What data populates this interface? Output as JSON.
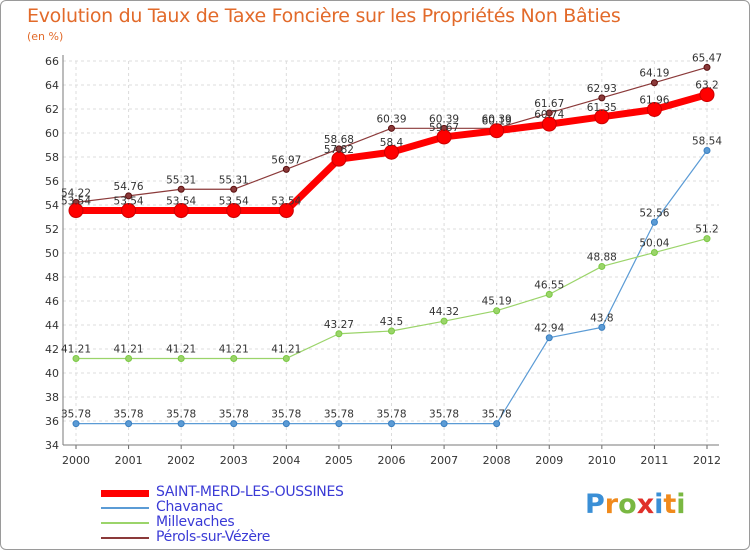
{
  "title": "Evolution du Taux de Taxe Foncière sur les Propriétés Non Bâties",
  "unit": "(en %)",
  "logo": {
    "letters": [
      "P",
      "r",
      "o",
      "x",
      "i",
      "t",
      "i"
    ],
    "colors": [
      "#3a8fd6",
      "#f08a1c",
      "#7ab842",
      "#e0302a",
      "#3a8fd6",
      "#f08a1c",
      "#7ab842"
    ]
  },
  "chart_data": {
    "type": "line",
    "title": "Evolution du Taux de Taxe Foncière sur les Propriétés Non Bâties",
    "ylabel": "(en %)",
    "xlabel": "",
    "ylim": [
      34,
      66
    ],
    "yticks": [
      34,
      36,
      38,
      40,
      42,
      44,
      46,
      48,
      50,
      52,
      54,
      56,
      58,
      60,
      62,
      64,
      66
    ],
    "categories": [
      "2000",
      "2001",
      "2002",
      "2003",
      "2004",
      "2005",
      "2006",
      "2007",
      "2008",
      "2009",
      "2010",
      "2011",
      "2012"
    ],
    "series": [
      {
        "name": "SAINT-MERD-LES-OUSSINES",
        "color": "#ff0000",
        "marker": "#cc0000",
        "width": 7,
        "radius": 7,
        "values": [
          53.54,
          53.54,
          53.54,
          53.54,
          53.54,
          57.82,
          58.4,
          59.67,
          60.19,
          60.74,
          61.35,
          61.96,
          63.2
        ],
        "labels": [
          "53.54",
          "53.54",
          "53.54",
          "53.54",
          "53.54",
          "57.82",
          "58.4",
          "59.67",
          "60.19",
          "60.74",
          "61.35",
          "61.96",
          "63.2"
        ]
      },
      {
        "name": "Chavanac",
        "color": "#5b9bd5",
        "marker": "#3a7fc0",
        "width": 1.2,
        "radius": 3,
        "values": [
          35.78,
          35.78,
          35.78,
          35.78,
          35.78,
          35.78,
          35.78,
          35.78,
          35.78,
          42.94,
          43.8,
          52.56,
          58.54
        ],
        "labels": [
          "35.78",
          "35.78",
          "35.78",
          "35.78",
          "35.78",
          "35.78",
          "35.78",
          "35.78",
          "35.78",
          "42.94",
          "43.8",
          "52.56",
          "58.54"
        ]
      },
      {
        "name": "Millevaches",
        "color": "#9bd46a",
        "marker": "#7ac943",
        "width": 1.2,
        "radius": 3,
        "values": [
          41.21,
          41.21,
          41.21,
          41.21,
          41.21,
          43.27,
          43.5,
          44.32,
          45.19,
          46.55,
          48.88,
          50.04,
          51.2
        ],
        "labels": [
          "41.21",
          "41.21",
          "41.21",
          "41.21",
          "41.21",
          "43.27",
          "43.5",
          "44.32",
          "45.19",
          "46.55",
          "48.88",
          "50.04",
          "51.2"
        ]
      },
      {
        "name": "Pérols-sur-Vézère",
        "color": "#8b3a3a",
        "marker": "#5a1010",
        "width": 1.2,
        "radius": 3,
        "values": [
          54.22,
          54.76,
          55.31,
          55.31,
          56.97,
          58.68,
          60.39,
          60.39,
          60.39,
          61.67,
          62.93,
          64.19,
          65.47
        ],
        "labels": [
          "54.22",
          "54.76",
          "55.31",
          "55.31",
          "56.97",
          "58.68",
          "60.39",
          "60.39",
          "60.39",
          "61.67",
          "62.93",
          "64.19",
          "65.47"
        ]
      }
    ]
  }
}
